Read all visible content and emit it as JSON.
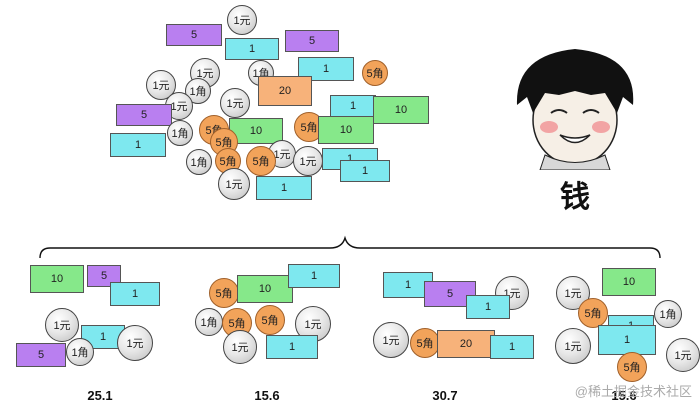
{
  "colors": {
    "bill_1": "#7ee8ef",
    "bill_5": "#b97ff0",
    "bill_10": "#86e88a",
    "bill_20": "#f7b27a",
    "coin_5jiao": "#f2a35a",
    "coin_1yuan": "#d9d9d9"
  },
  "labels": {
    "one_yuan_coin": "1元",
    "one_jiao_coin": "1角",
    "five_jiao_coin": "5角",
    "bill_1": "1",
    "bill_5": "5",
    "bill_10": "10",
    "bill_20": "20"
  },
  "caption": "钱",
  "groups": [
    {
      "sum": "25.1"
    },
    {
      "sum": "15.6"
    },
    {
      "sum": "30.7"
    },
    {
      "sum": "15.6"
    }
  ],
  "watermark": "@稀土掘金技术社区"
}
